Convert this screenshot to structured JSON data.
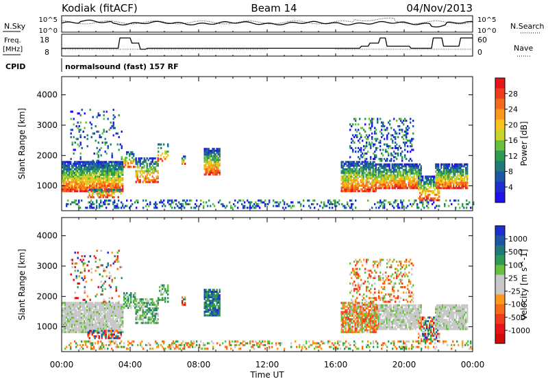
{
  "header": {
    "radar": "Kodiak (fitACF)",
    "beam": "Beam 14",
    "date": "04/Nov/2013"
  },
  "strip": {
    "nsky_label": "N.Sky",
    "nsearch_label": "N.Search",
    "freq_label": "Freq.",
    "freq_unit": "[MHz]",
    "nave_label": "Nave",
    "cpid_label": "CPID",
    "cpid_text": "normalsound (fast) 157 RF",
    "noise_ticks": [
      "10^5",
      "10^0"
    ],
    "noise_right_ticks": [
      "10^5",
      "10^0"
    ],
    "freq_ticks": [
      "18",
      "8"
    ],
    "nave_ticks": [
      "60",
      "0"
    ]
  },
  "chart_data": [
    {
      "type": "heatmap",
      "name": "power",
      "ylabel": "Slant Range [km]",
      "xlabel": "Time UT",
      "ylim": [
        180,
        4600
      ],
      "yticks": [
        1000,
        2000,
        3000,
        4000
      ],
      "xticks": [
        "00:00",
        "04:00",
        "08:00",
        "12:00",
        "16:00",
        "20:00",
        "00:00"
      ],
      "colorbar": {
        "label": "Power [dB]",
        "ticks": [
          "28",
          "24",
          "20",
          "16",
          "12",
          "8",
          "4"
        ],
        "colors": [
          "#e8141c",
          "#f03c1c",
          "#f76a1a",
          "#fb9a1a",
          "#f8c41c",
          "#c8d42a",
          "#68c040",
          "#2e9a52",
          "#1f7a78",
          "#1e56a6",
          "#1e2ed2",
          "#2010f0"
        ]
      }
    },
    {
      "type": "heatmap",
      "name": "velocity",
      "ylabel": "Slant Range [km]",
      "xlabel": "Time UT",
      "ylim": [
        180,
        4600
      ],
      "yticks": [
        1000,
        2000,
        3000,
        4000
      ],
      "xticks": [
        "00:00",
        "04:00",
        "08:00",
        "12:00",
        "16:00",
        "20:00",
        "00:00"
      ],
      "colorbar": {
        "label": "Velocity [m s^-1]",
        "ticks": [
          "1000",
          "500",
          "100",
          "25",
          "-25",
          "-100",
          "-500",
          "-1000"
        ],
        "colors": [
          "#1e2ed2",
          "#1e56a6",
          "#1f7a78",
          "#2e9a52",
          "#68c040",
          "#c8c8c8",
          "#c8c8c8",
          "#fb9a1a",
          "#f76a1a",
          "#f03c1c",
          "#e8141c",
          "#d40a0a"
        ]
      }
    }
  ]
}
